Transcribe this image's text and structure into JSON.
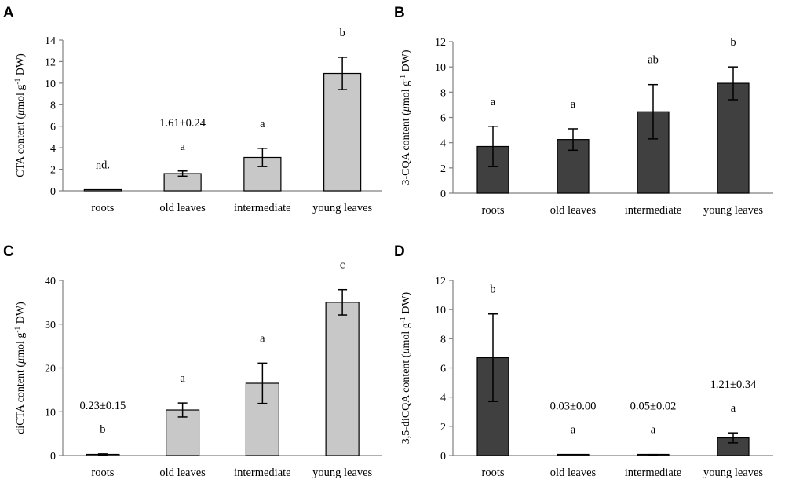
{
  "chart_data": [
    {
      "panel": "A",
      "type": "bar",
      "categories": [
        "roots",
        "old leaves",
        "intermediate",
        "young leaves"
      ],
      "values": [
        0,
        1.6,
        3.1,
        10.9
      ],
      "errors": [
        0,
        0.24,
        0.85,
        1.5
      ],
      "ylabel": {
        "main": "CTA content (",
        "mu": "μ",
        "unit": "mol g",
        "sup": "-1",
        "tail": " DW)"
      },
      "ylim": [
        0,
        14
      ],
      "yticks": [
        0,
        2,
        4,
        6,
        8,
        10,
        12,
        14
      ],
      "bar_color": "#c8c8c8",
      "letters": [
        "nd.",
        "a",
        "a",
        "b"
      ],
      "value_labels": [
        "",
        "1.61±0.24",
        "",
        ""
      ],
      "grid": false
    },
    {
      "panel": "B",
      "type": "bar",
      "categories": [
        "roots",
        "old leaves",
        "intermediate",
        "young leaves"
      ],
      "values": [
        3.7,
        4.25,
        6.45,
        8.7
      ],
      "errors": [
        1.6,
        0.85,
        2.15,
        1.3
      ],
      "ylabel": {
        "main": "3-CQA content (",
        "mu": "μ",
        "unit": "mol g",
        "sup": "-1",
        "tail": " DW)"
      },
      "ylim": [
        0,
        12
      ],
      "yticks": [
        0,
        2,
        4,
        6,
        8,
        10,
        12
      ],
      "bar_color": "#404040",
      "letters": [
        "a",
        "a",
        "ab",
        "b"
      ],
      "value_labels": [
        "",
        "",
        "",
        ""
      ],
      "grid": false
    },
    {
      "panel": "C",
      "type": "bar",
      "categories": [
        "roots",
        "old leaves",
        "intermediate",
        "young leaves"
      ],
      "values": [
        0.23,
        10.4,
        16.5,
        35
      ],
      "errors": [
        0.15,
        1.6,
        4.6,
        2.9
      ],
      "ylabel": {
        "main": "diCTA content (",
        "mu": "μ",
        "unit": "mol g",
        "sup": "-1",
        "tail": " DW)"
      },
      "ylim": [
        0,
        40
      ],
      "yticks": [
        0,
        10,
        20,
        30,
        40
      ],
      "bar_color": "#c8c8c8",
      "letters": [
        "b",
        "a",
        "a",
        "c"
      ],
      "value_labels": [
        "0.23±0.15",
        "",
        "",
        ""
      ],
      "grid": false
    },
    {
      "panel": "D",
      "type": "bar",
      "categories": [
        "roots",
        "old leaves",
        "intermediate",
        "young leaves"
      ],
      "values": [
        6.7,
        0.03,
        0.05,
        1.21
      ],
      "errors": [
        3.0,
        0.0,
        0.02,
        0.34
      ],
      "ylabel": {
        "main": "3,5-diCQA content (",
        "mu": "μ",
        "unit": "mol g",
        "sup": "-1",
        "tail": " DW)"
      },
      "ylim": [
        0,
        12
      ],
      "yticks": [
        0,
        2,
        4,
        6,
        8,
        10,
        12
      ],
      "bar_color": "#404040",
      "letters": [
        "b",
        "a",
        "a",
        "a"
      ],
      "value_labels": [
        "",
        "0.03±0.00",
        "0.05±0.02",
        "1.21±0.34"
      ],
      "grid": false
    }
  ]
}
